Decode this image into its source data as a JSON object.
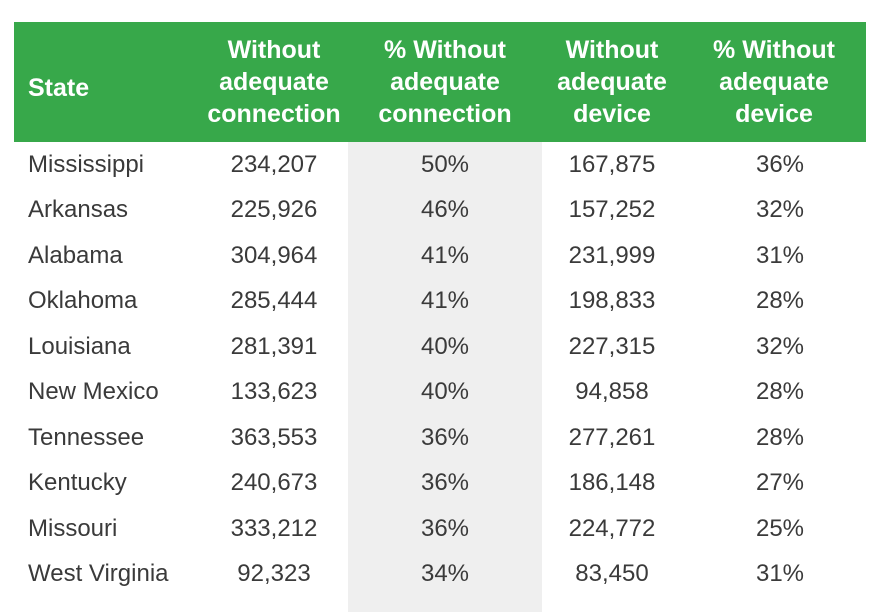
{
  "chart_data": {
    "type": "table",
    "columns": [
      "State",
      "Without\nadequate\nconnection",
      "% Without\nadequate\nconnection",
      "Without\nadequate\ndevice",
      "% Without\nadequate\ndevice"
    ],
    "rows": [
      [
        "Mississippi",
        "234,207",
        "50%",
        "167,875",
        "36%"
      ],
      [
        "Arkansas",
        "225,926",
        "46%",
        "157,252",
        "32%"
      ],
      [
        "Alabama",
        "304,964",
        "41%",
        "231,999",
        "31%"
      ],
      [
        "Oklahoma",
        "285,444",
        "41%",
        "198,833",
        "28%"
      ],
      [
        "Louisiana",
        "281,391",
        "40%",
        "227,315",
        "32%"
      ],
      [
        "New Mexico",
        "133,623",
        "40%",
        "94,858",
        "28%"
      ],
      [
        "Tennessee",
        "363,553",
        "36%",
        "277,261",
        "28%"
      ],
      [
        "Kentucky",
        "240,673",
        "36%",
        "186,148",
        "27%"
      ],
      [
        "Missouri",
        "333,212",
        "36%",
        "224,772",
        "25%"
      ],
      [
        "West Virginia",
        "92,323",
        "34%",
        "83,450",
        "31%"
      ]
    ]
  },
  "colors": {
    "header_bg": "#37a84a",
    "header_text": "#ffffff",
    "band_bg": "#efefef",
    "body_text": "#3a3a3a"
  }
}
